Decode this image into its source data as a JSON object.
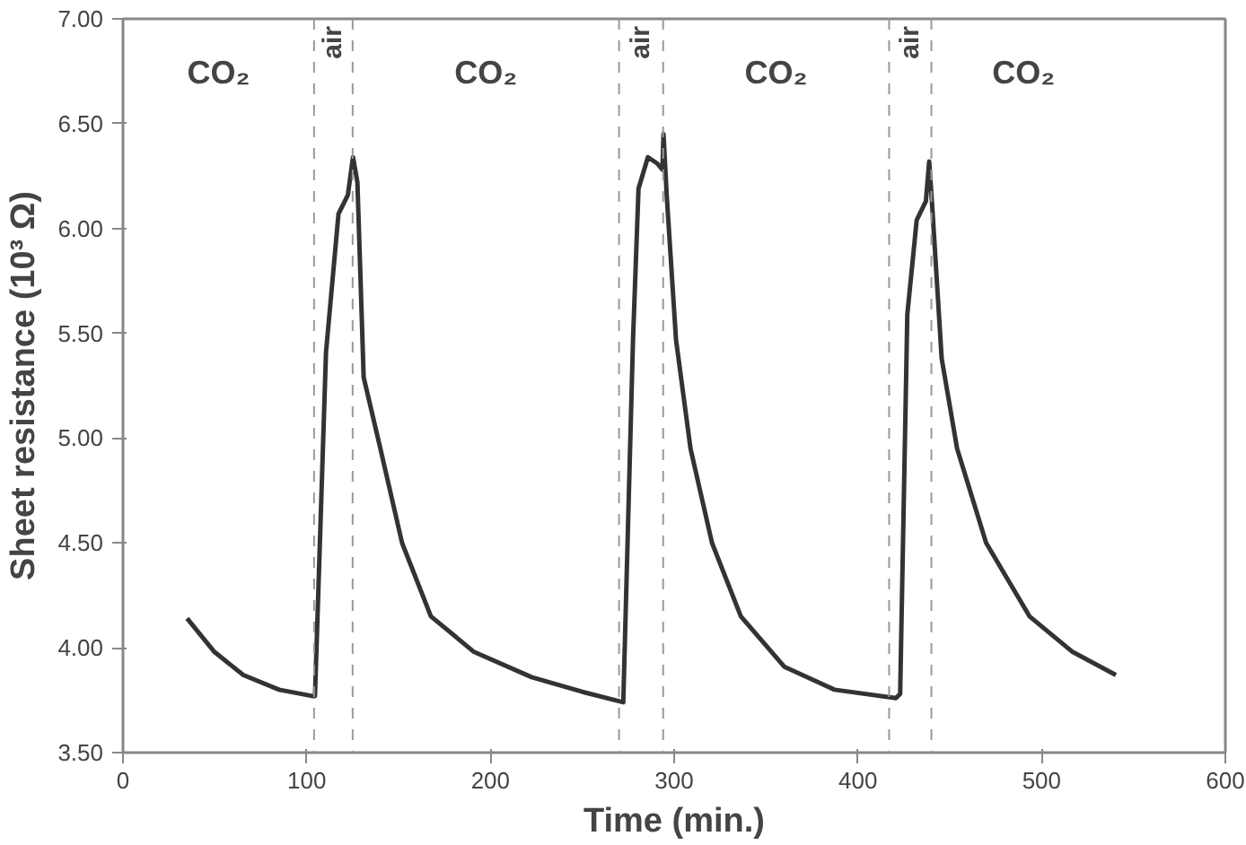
{
  "chart_data": {
    "type": "line",
    "xlabel": "Time (min.)",
    "ylabel": "Sheet resistance (10³ Ω)",
    "xlim": [
      0,
      600
    ],
    "xticks": [
      0,
      100,
      200,
      300,
      400,
      500,
      600
    ],
    "ylim": [
      3.5,
      7.0
    ],
    "yticks": [
      {
        "value": 3.5,
        "label": "3.50"
      },
      {
        "value": 4.0,
        "label": "4.00"
      },
      {
        "value": 4.5,
        "label": "4.50"
      },
      {
        "value": 5.0,
        "label": "5.00"
      },
      {
        "value": 5.5,
        "label": "5.50"
      },
      {
        "value": 6.0,
        "label": "6.00"
      },
      {
        "value": 6.5,
        "label": "6.50"
      },
      {
        "value": 7.0,
        "label": "7.00"
      }
    ],
    "grid": false,
    "marker": "none",
    "line_style": "solid",
    "series": [
      {
        "color": "#333333",
        "x": [
          34.9,
          49.8,
          65.5,
          85,
          102.9,
          104.5,
          110.5,
          117.3,
          122.4,
          125.2,
          127.6,
          131,
          140.1,
          151.9,
          167.6,
          191.1,
          222.4,
          250,
          272.3,
          277.6,
          280.6,
          285.7,
          290.8,
          293.6,
          294.2,
          296,
          301,
          308.9,
          320.6,
          336.3,
          359.9,
          387.3,
          420.7,
          423,
          426.9,
          432,
          437,
          438.8,
          440.5,
          445.6,
          454,
          469.8,
          493.4,
          516.9,
          540.4
        ],
        "values": [
          4.14,
          3.98,
          3.87,
          3.8,
          3.77,
          3.77,
          5.41,
          6.07,
          6.16,
          6.34,
          6.22,
          5.29,
          4.95,
          4.5,
          4.15,
          3.98,
          3.86,
          3.79,
          3.74,
          5.47,
          6.19,
          6.34,
          6.31,
          6.28,
          6.45,
          6.15,
          5.47,
          4.95,
          4.5,
          4.15,
          3.91,
          3.8,
          3.76,
          3.78,
          5.59,
          6.04,
          6.13,
          6.32,
          6.1,
          5.38,
          4.95,
          4.5,
          4.15,
          3.98,
          3.87
        ]
      }
    ],
    "ref_lines": [
      {
        "axis": "x",
        "value": 104,
        "label": "air",
        "color": "#999999",
        "line_style": "dashed"
      },
      {
        "axis": "x",
        "value": 125,
        "color": "#999999",
        "line_style": "dashed"
      },
      {
        "axis": "x",
        "value": 270,
        "label": "air",
        "color": "#999999",
        "line_style": "dashed"
      },
      {
        "axis": "x",
        "value": 294,
        "color": "#999999",
        "line_style": "dashed"
      },
      {
        "axis": "x",
        "value": 417,
        "label": "air",
        "color": "#999999",
        "line_style": "dashed"
      },
      {
        "axis": "x",
        "value": 440,
        "color": "#999999",
        "line_style": "dashed"
      }
    ],
    "annotations": [
      "CO₂",
      "CO₂",
      "CO₂",
      "CO₂"
    ]
  }
}
